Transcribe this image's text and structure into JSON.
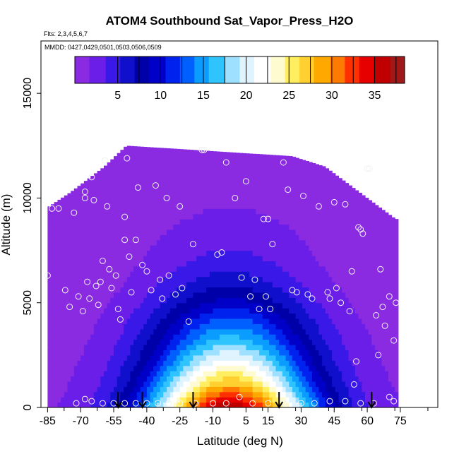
{
  "chart_data": {
    "type": "heatmap",
    "title": "ATOM4 Southbound Sat_Vapor_Press_H2O",
    "flights_label": "Flts: 2,3,4,5,6,7",
    "dates_label": "MMDD: 0427,0429,0501,0503,0506,0509",
    "xlabel": "Latitude (deg N)",
    "ylabel": "Altitude (m)",
    "xlim": [
      -88,
      92
    ],
    "ylim": [
      0,
      17500
    ],
    "xticks": [
      -85,
      -70,
      -55,
      -40,
      -25,
      -10,
      5,
      15,
      30,
      45,
      60,
      75
    ],
    "yticks": [
      0,
      5000,
      10000,
      15000
    ],
    "colorbar": {
      "range": [
        0,
        38.5
      ],
      "ticks": [
        5,
        10,
        15,
        20,
        25,
        30,
        35
      ],
      "colors": [
        "#8a2be2",
        "#6a1ee8",
        "#3a18e8",
        "#1010cc",
        "#0000a8",
        "#0000c8",
        "#0022ee",
        "#0060ff",
        "#0a9cff",
        "#30c4ff",
        "#9ee0ff",
        "#e0f4ff",
        "#ffffff",
        "#fffbd0",
        "#ffee60",
        "#ffd030",
        "#ffa800",
        "#ff7a00",
        "#ff3000",
        "#e60000",
        "#c00000",
        "#a01818"
      ]
    },
    "field": {
      "lat_range": [
        -85,
        73
      ],
      "vertical_profile_at_equator": [
        {
          "alt": 0,
          "value": 36
        },
        {
          "alt": 1000,
          "value": 28
        },
        {
          "alt": 2000,
          "value": 22
        },
        {
          "alt": 3000,
          "value": 17
        },
        {
          "alt": 4000,
          "value": 13
        },
        {
          "alt": 5000,
          "value": 9
        },
        {
          "alt": 6000,
          "value": 6
        },
        {
          "alt": 7000,
          "value": 4
        },
        {
          "alt": 8000,
          "value": 3
        },
        {
          "alt": 9000,
          "value": 2
        },
        {
          "alt": 10000,
          "value": 1.5
        },
        {
          "alt": 12500,
          "value": 0.5
        }
      ],
      "top_altitude_by_lat": [
        {
          "lat": -85,
          "alt": 9600
        },
        {
          "lat": -75,
          "alt": 10300
        },
        {
          "lat": -60,
          "alt": 11500
        },
        {
          "lat": -50,
          "alt": 12500
        },
        {
          "lat": 25,
          "alt": 12000
        },
        {
          "lat": 40,
          "alt": 11500
        },
        {
          "lat": 72,
          "alt": 9000
        }
      ]
    },
    "observations": [
      {
        "lat": -85,
        "alt": 6300
      },
      {
        "lat": -83,
        "alt": 9500
      },
      {
        "lat": -80,
        "alt": 9500
      },
      {
        "lat": -77,
        "alt": 5600
      },
      {
        "lat": -75,
        "alt": 4800
      },
      {
        "lat": -73,
        "alt": 9300
      },
      {
        "lat": -71,
        "alt": 5300
      },
      {
        "lat": -69,
        "alt": 4600
      },
      {
        "lat": -68,
        "alt": 10300
      },
      {
        "lat": -68,
        "alt": 10000
      },
      {
        "lat": -67,
        "alt": 6000
      },
      {
        "lat": -66,
        "alt": 5200
      },
      {
        "lat": -65,
        "alt": 11000
      },
      {
        "lat": -64,
        "alt": 9900
      },
      {
        "lat": -63,
        "alt": 5800
      },
      {
        "lat": -62,
        "alt": 4900
      },
      {
        "lat": -61,
        "alt": 6000
      },
      {
        "lat": -60,
        "alt": 7000
      },
      {
        "lat": -59,
        "alt": 11800
      },
      {
        "lat": -58,
        "alt": 9600
      },
      {
        "lat": -57,
        "alt": 6600
      },
      {
        "lat": -56,
        "alt": 5700
      },
      {
        "lat": -54,
        "alt": 6300
      },
      {
        "lat": -53,
        "alt": 4700
      },
      {
        "lat": -52,
        "alt": 4200
      },
      {
        "lat": -50,
        "alt": 9100
      },
      {
        "lat": -50,
        "alt": 8000
      },
      {
        "lat": -49,
        "alt": 11900
      },
      {
        "lat": -48,
        "alt": 7200
      },
      {
        "lat": -47,
        "alt": 5500
      },
      {
        "lat": -45,
        "alt": 8000
      },
      {
        "lat": -44,
        "alt": 10500
      },
      {
        "lat": -42,
        "alt": 6800
      },
      {
        "lat": -40,
        "alt": 6500
      },
      {
        "lat": -38,
        "alt": 5600
      },
      {
        "lat": -36,
        "alt": 10600
      },
      {
        "lat": -34,
        "alt": 6100
      },
      {
        "lat": -33,
        "alt": 5200
      },
      {
        "lat": -31,
        "alt": 10000
      },
      {
        "lat": -30,
        "alt": 6300
      },
      {
        "lat": -27,
        "alt": 5400
      },
      {
        "lat": -25,
        "alt": 9600
      },
      {
        "lat": -24,
        "alt": 5700
      },
      {
        "lat": -21,
        "alt": 4100
      },
      {
        "lat": -19,
        "alt": 7800
      },
      {
        "lat": -15,
        "alt": 12300
      },
      {
        "lat": -14,
        "alt": 12300
      },
      {
        "lat": -8,
        "alt": 7300
      },
      {
        "lat": -6,
        "alt": 7400
      },
      {
        "lat": -4,
        "alt": 11700
      },
      {
        "lat": 0,
        "alt": 10000
      },
      {
        "lat": 3,
        "alt": 6200
      },
      {
        "lat": 5,
        "alt": 10800
      },
      {
        "lat": 7,
        "alt": 5300
      },
      {
        "lat": 9,
        "alt": 6100
      },
      {
        "lat": 11,
        "alt": 4700
      },
      {
        "lat": 13,
        "alt": 9000
      },
      {
        "lat": 14,
        "alt": 5300
      },
      {
        "lat": 15,
        "alt": 9000
      },
      {
        "lat": 16,
        "alt": 4700
      },
      {
        "lat": 17,
        "alt": 7800
      },
      {
        "lat": 22,
        "alt": 11700
      },
      {
        "lat": 24,
        "alt": 10400
      },
      {
        "lat": 26,
        "alt": 5600
      },
      {
        "lat": 28,
        "alt": 5500
      },
      {
        "lat": 31,
        "alt": 10100
      },
      {
        "lat": 33,
        "alt": 5400
      },
      {
        "lat": 35,
        "alt": 5200
      },
      {
        "lat": 38,
        "alt": 9600
      },
      {
        "lat": 42,
        "alt": 5500
      },
      {
        "lat": 43,
        "alt": 5200
      },
      {
        "lat": 45,
        "alt": 9800
      },
      {
        "lat": 46,
        "alt": 5700
      },
      {
        "lat": 48,
        "alt": 5000
      },
      {
        "lat": 50,
        "alt": 9700
      },
      {
        "lat": 52,
        "alt": 4600
      },
      {
        "lat": 53,
        "alt": 6500
      },
      {
        "lat": 56,
        "alt": 8600
      },
      {
        "lat": 57,
        "alt": 8500
      },
      {
        "lat": 58,
        "alt": 8300
      },
      {
        "lat": 60,
        "alt": 11400
      },
      {
        "lat": 61,
        "alt": 11400
      },
      {
        "lat": 64,
        "alt": 4400
      },
      {
        "lat": 65,
        "alt": 2500
      },
      {
        "lat": 66,
        "alt": 6600
      },
      {
        "lat": 67,
        "alt": 4800
      },
      {
        "lat": 68,
        "alt": 3900
      },
      {
        "lat": 70,
        "alt": 5300
      },
      {
        "lat": 72,
        "alt": 3200
      },
      {
        "lat": 73,
        "alt": 5000
      },
      {
        "lat": 55,
        "alt": 2200
      },
      {
        "lat": 54,
        "alt": 1100
      },
      {
        "lat": -72,
        "alt": 200
      },
      {
        "lat": -68,
        "alt": 400
      },
      {
        "lat": -65,
        "alt": 300
      },
      {
        "lat": -60,
        "alt": 200
      },
      {
        "lat": -55,
        "alt": 200
      },
      {
        "lat": -50,
        "alt": 200
      },
      {
        "lat": -45,
        "alt": 200
      },
      {
        "lat": -40,
        "alt": 200
      },
      {
        "lat": -35,
        "alt": 200
      },
      {
        "lat": -30,
        "alt": 200
      },
      {
        "lat": -25,
        "alt": 200
      },
      {
        "lat": -18,
        "alt": 200
      },
      {
        "lat": -10,
        "alt": 200
      },
      {
        "lat": -4,
        "alt": 200
      },
      {
        "lat": 2,
        "alt": 500
      },
      {
        "lat": 8,
        "alt": 200
      },
      {
        "lat": 15,
        "alt": 200
      },
      {
        "lat": 22,
        "alt": 200
      },
      {
        "lat": 30,
        "alt": 200
      },
      {
        "lat": 36,
        "alt": 200
      },
      {
        "lat": 43,
        "alt": 300
      },
      {
        "lat": 50,
        "alt": 300
      },
      {
        "lat": 57,
        "alt": 200
      },
      {
        "lat": 63,
        "alt": 200
      },
      {
        "lat": 70,
        "alt": 500
      },
      {
        "lat": 72,
        "alt": 300
      }
    ],
    "arrows_lat": [
      -53,
      -42,
      -19,
      20,
      62
    ]
  }
}
